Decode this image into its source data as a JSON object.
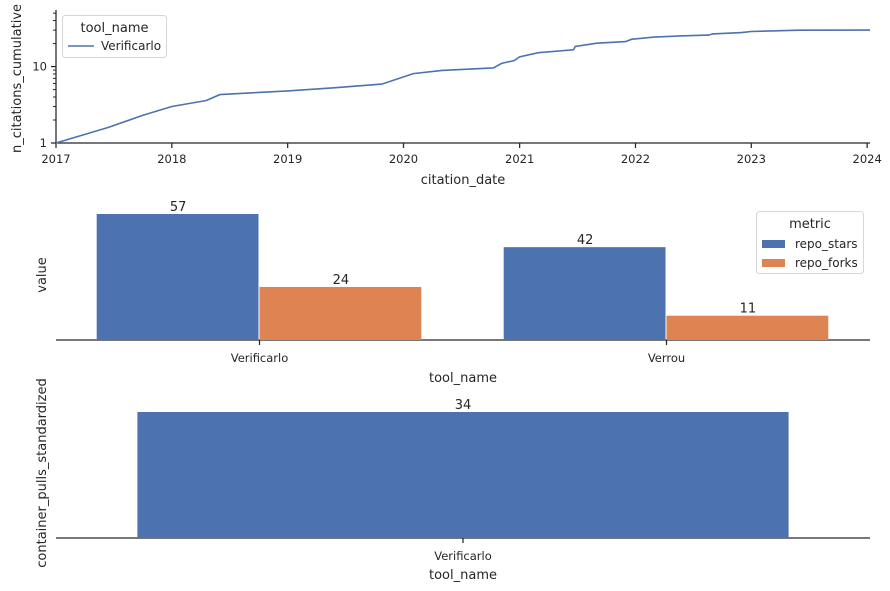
{
  "chart_data": [
    {
      "type": "line",
      "xlabel": "citation_date",
      "ylabel": "n_citations_cumulative",
      "yscale": "log",
      "ylim": [
        1,
        55
      ],
      "xlim": [
        "2017-01-01",
        "2024-01-10"
      ],
      "x_ticks": [
        "2017",
        "2018",
        "2019",
        "2020",
        "2021",
        "2022",
        "2023",
        "2024"
      ],
      "y_ticks": [
        "1",
        "10"
      ],
      "legend": {
        "title": "tool_name",
        "position": "top-left"
      },
      "color": "#4c72b0",
      "series": [
        {
          "name": "Verificarlo",
          "x": [
            "2017-01-01",
            "2017-06-15",
            "2017-10-01",
            "2018-01-01",
            "2018-04-20",
            "2018-06-01",
            "2019-01-01",
            "2019-06-01",
            "2019-10-25",
            "2020-02-01",
            "2020-05-01",
            "2020-10-10",
            "2020-11-05",
            "2020-12-15",
            "2021-01-01",
            "2021-03-01",
            "2021-06-20",
            "2021-06-25",
            "2021-09-01",
            "2021-12-01",
            "2021-12-20",
            "2022-03-01",
            "2022-06-01",
            "2022-08-20",
            "2022-09-01",
            "2022-12-01",
            "2023-01-01",
            "2023-06-01",
            "2024-01-10"
          ],
          "y": [
            1,
            1.6,
            2.3,
            3.0,
            3.6,
            4.3,
            4.8,
            5.3,
            5.9,
            8.1,
            8.9,
            9.6,
            11.0,
            12.0,
            13.4,
            15.2,
            16.6,
            18.3,
            20.2,
            21.2,
            22.8,
            24.3,
            25.3,
            25.8,
            26.8,
            27.8,
            28.8,
            29.9,
            30.0
          ]
        }
      ]
    },
    {
      "type": "bar",
      "xlabel": "tool_name",
      "ylabel": "value",
      "categories": [
        "Verificarlo",
        "Verrou"
      ],
      "legend": {
        "title": "metric",
        "position": "top-right"
      },
      "series": [
        {
          "name": "repo_stars",
          "values": [
            57,
            42
          ],
          "color": "#4c72b0"
        },
        {
          "name": "repo_forks",
          "values": [
            24,
            11
          ],
          "color": "#dd8452"
        }
      ]
    },
    {
      "type": "bar",
      "xlabel": "tool_name",
      "ylabel": "container_pulls_standardized",
      "categories": [
        "Verificarlo"
      ],
      "series": [
        {
          "values": [
            34
          ],
          "color": "#4c72b0"
        }
      ]
    }
  ]
}
